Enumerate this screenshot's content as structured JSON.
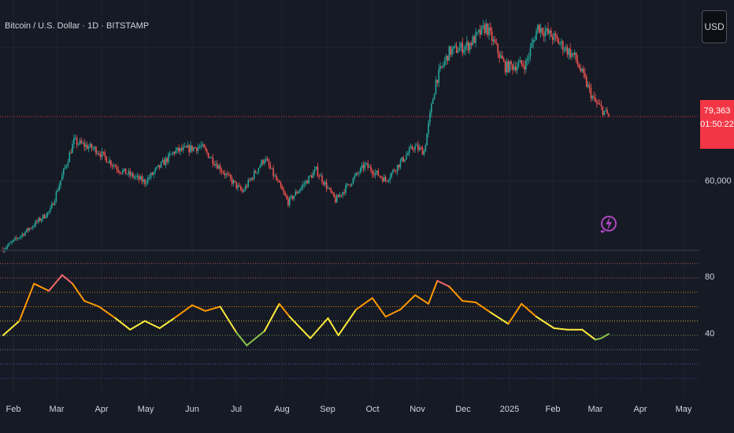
{
  "header": {
    "symbol_title": "Bitcoin / U.S. Dollar · 1D · BITSTAMP"
  },
  "currency_button": {
    "label": "USD"
  },
  "price_tag": {
    "price": "79,363",
    "countdown": "01:50:22",
    "color": "#f23645"
  },
  "price_axis": {
    "tick_label": "60,000"
  },
  "indicator_axis": {
    "ticks": [
      "80",
      "40"
    ]
  },
  "time_axis": {
    "labels": [
      "Feb",
      "Mar",
      "Apr",
      "May",
      "Jun",
      "Jul",
      "Aug",
      "Sep",
      "Oct",
      "Nov",
      "Dec",
      "2025",
      "Feb",
      "Mar",
      "Apr",
      "May"
    ]
  },
  "colors": {
    "background": "#161a25",
    "up_candle": "#26a69a",
    "down_candle": "#ef5350",
    "price_line": "#f23645",
    "rsi_hot": "#f06868",
    "rsi_warm": "#ff9800",
    "rsi_neutral": "#ffeb3b",
    "rsi_cold": "#8bc34a"
  },
  "chart_data": [
    {
      "type": "candlestick",
      "title": "Bitcoin / U.S. Dollar · 1D · BITSTAMP",
      "x": [
        "2024-01-25",
        "2024-02-10",
        "2024-02-26",
        "2024-03-13",
        "2024-03-28",
        "2024-04-13",
        "2024-04-30",
        "2024-05-20",
        "2024-06-07",
        "2024-06-24",
        "2024-07-05",
        "2024-07-20",
        "2024-08-05",
        "2024-08-24",
        "2024-09-06",
        "2024-09-26",
        "2024-10-10",
        "2024-10-29",
        "2024-11-05",
        "2024-11-13",
        "2024-11-22",
        "2024-12-05",
        "2024-12-17",
        "2024-12-30",
        "2025-01-13",
        "2025-01-21",
        "2025-01-31",
        "2025-02-15",
        "2025-02-28",
        "2025-03-10"
      ],
      "close": [
        40000,
        45500,
        51500,
        72000,
        69500,
        63500,
        60000,
        69000,
        70500,
        62000,
        57000,
        67000,
        54000,
        63500,
        54500,
        65000,
        60500,
        70500,
        69000,
        90000,
        98500,
        100500,
        106000,
        94000,
        95000,
        106000,
        103000,
        97000,
        84000,
        79363
      ],
      "ylabel_ticks": [
        60000
      ],
      "last_price": 79363,
      "countdown": "01:50:22",
      "currency": "USD"
    },
    {
      "type": "line",
      "name": "oscillator",
      "x": [
        "2024-01-25",
        "2024-02-05",
        "2024-02-15",
        "2024-02-25",
        "2024-03-05",
        "2024-03-12",
        "2024-03-20",
        "2024-03-30",
        "2024-04-10",
        "2024-04-20",
        "2024-04-30",
        "2024-05-10",
        "2024-05-20",
        "2024-06-01",
        "2024-06-10",
        "2024-06-20",
        "2024-07-01",
        "2024-07-08",
        "2024-07-20",
        "2024-07-30",
        "2024-08-06",
        "2024-08-20",
        "2024-09-01",
        "2024-09-08",
        "2024-09-20",
        "2024-10-01",
        "2024-10-10",
        "2024-10-20",
        "2024-10-30",
        "2024-11-08",
        "2024-11-14",
        "2024-11-22",
        "2024-12-01",
        "2024-12-10",
        "2024-12-20",
        "2025-01-01",
        "2025-01-10",
        "2025-01-20",
        "2025-02-01",
        "2025-02-10",
        "2025-02-20",
        "2025-03-01",
        "2025-03-05",
        "2025-03-10"
      ],
      "values": [
        40,
        50,
        76,
        71,
        82,
        76,
        64,
        60,
        52,
        44,
        50,
        45,
        52,
        61,
        57,
        60,
        42,
        33,
        43,
        62,
        53,
        38,
        52,
        40,
        58,
        66,
        53,
        58,
        68,
        62,
        78,
        74,
        64,
        63,
        56,
        48,
        62,
        53,
        45,
        44,
        44,
        37,
        38,
        41
      ],
      "ylim": [
        0,
        100
      ],
      "reference_levels": [
        90,
        80,
        70,
        60,
        50,
        40,
        30,
        20,
        10
      ]
    }
  ]
}
